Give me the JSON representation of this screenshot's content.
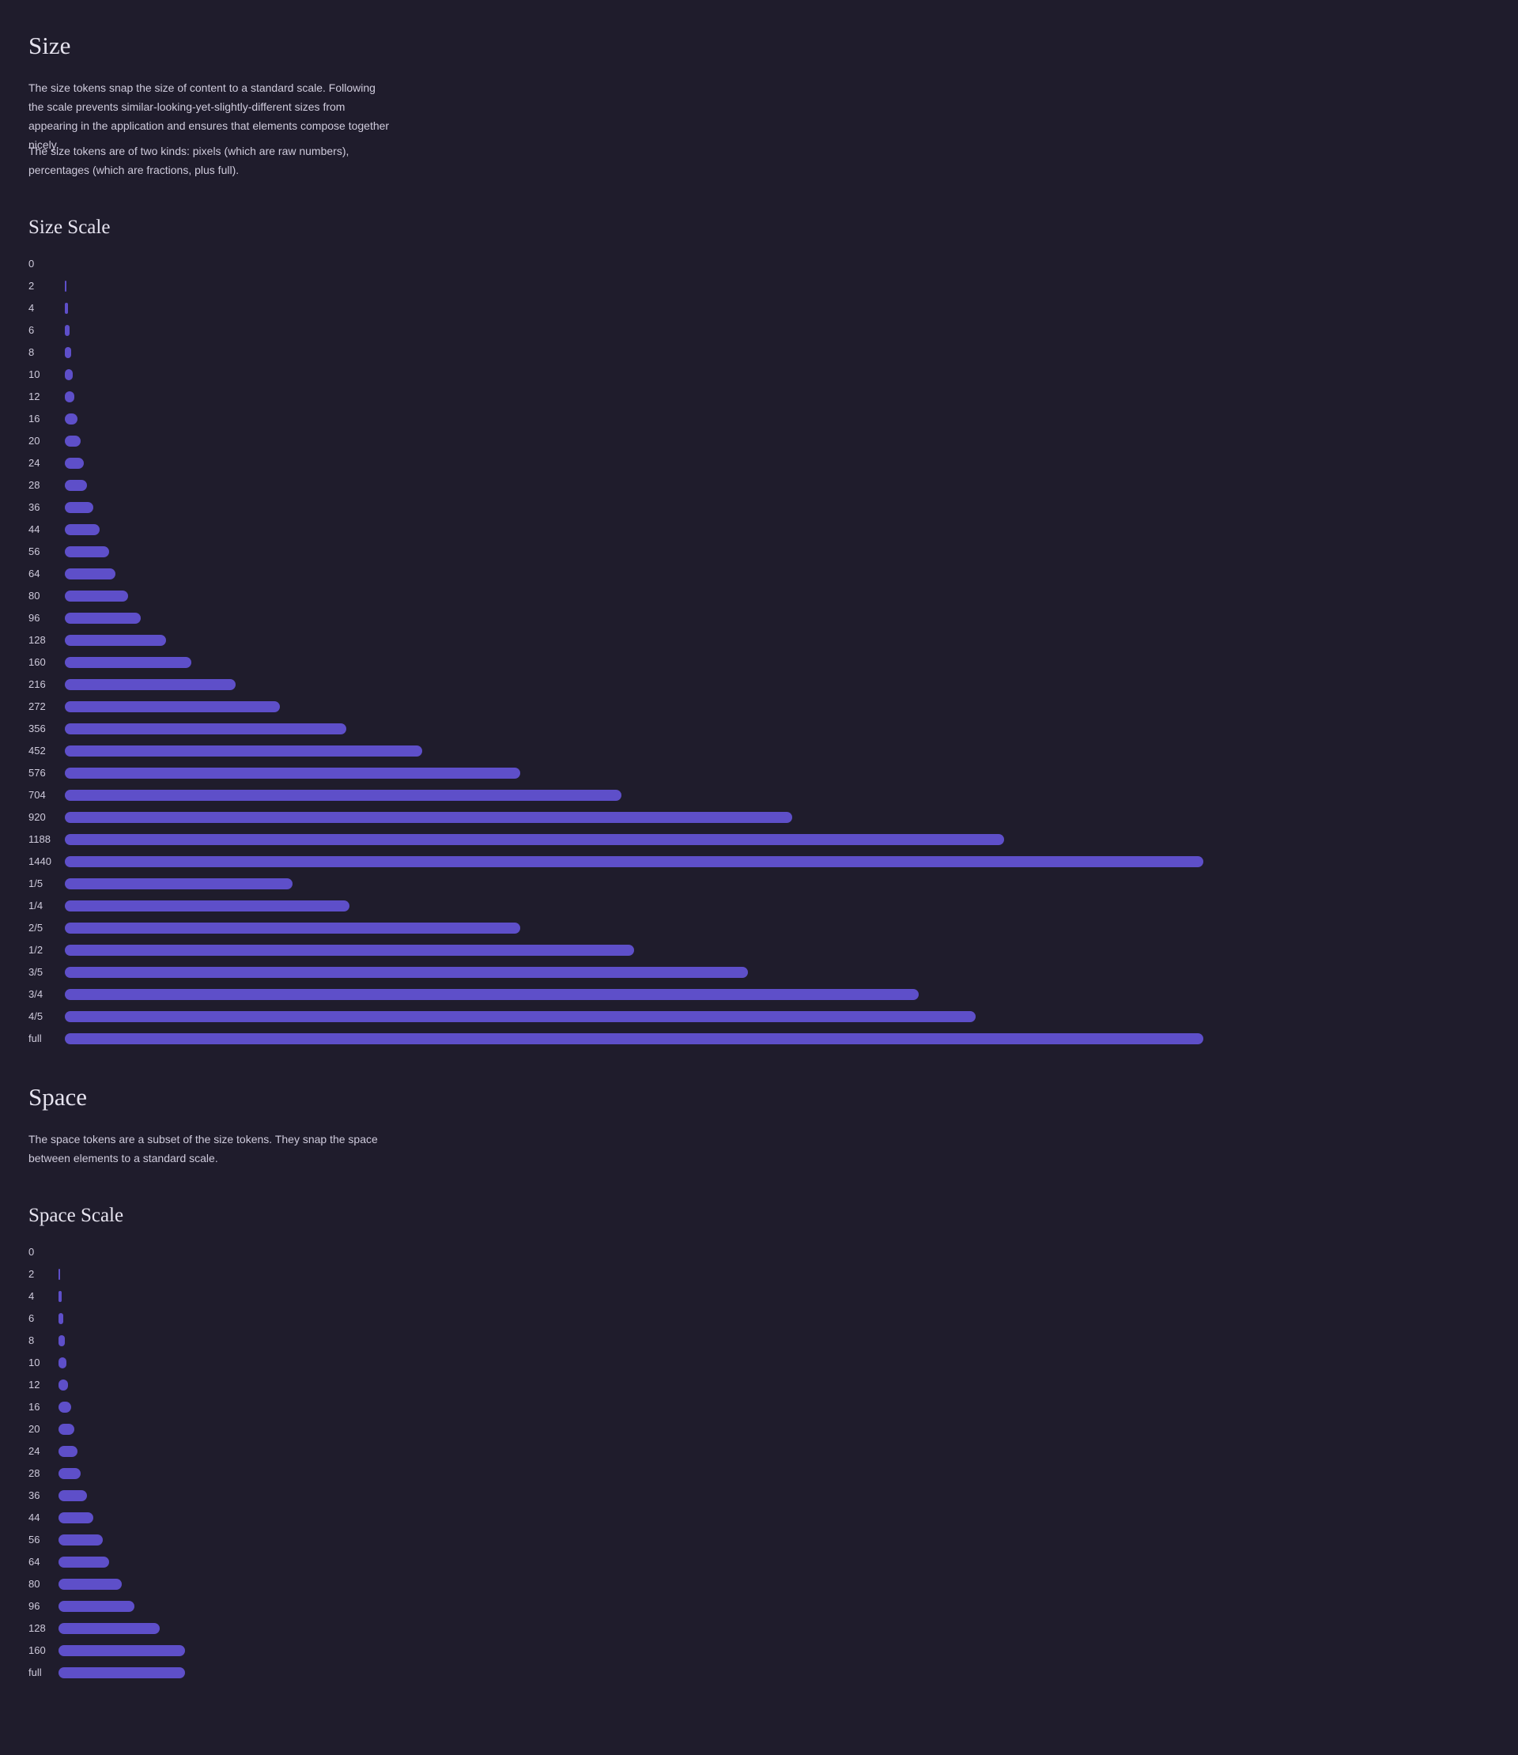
{
  "size": {
    "title": "Size",
    "paragraphs": [
      "The size tokens snap the size of content to a standard scale. Following the scale prevents similar-looking-yet-slightly-different sizes from appearing in the application and ensures that elements compose together nicely.",
      "The size tokens are of two kinds: pixels (which are raw numbers), percentages (which are fractions, plus full)."
    ],
    "scale_title": "Size Scale",
    "tokens": [
      {
        "label": "0",
        "value": 0
      },
      {
        "label": "2",
        "value": 2
      },
      {
        "label": "4",
        "value": 4
      },
      {
        "label": "6",
        "value": 6
      },
      {
        "label": "8",
        "value": 8
      },
      {
        "label": "10",
        "value": 10
      },
      {
        "label": "12",
        "value": 12
      },
      {
        "label": "16",
        "value": 16
      },
      {
        "label": "20",
        "value": 20
      },
      {
        "label": "24",
        "value": 24
      },
      {
        "label": "28",
        "value": 28
      },
      {
        "label": "36",
        "value": 36
      },
      {
        "label": "44",
        "value": 44
      },
      {
        "label": "56",
        "value": 56
      },
      {
        "label": "64",
        "value": 64
      },
      {
        "label": "80",
        "value": 80
      },
      {
        "label": "96",
        "value": 96
      },
      {
        "label": "128",
        "value": 128
      },
      {
        "label": "160",
        "value": 160
      },
      {
        "label": "216",
        "value": 216
      },
      {
        "label": "272",
        "value": 272
      },
      {
        "label": "356",
        "value": 356
      },
      {
        "label": "452",
        "value": 452
      },
      {
        "label": "576",
        "value": 576
      },
      {
        "label": "704",
        "value": 704
      },
      {
        "label": "920",
        "value": 920
      },
      {
        "label": "1188",
        "value": 1188
      },
      {
        "label": "1440",
        "value": 1440
      },
      {
        "label": "1/5",
        "value": 0.2
      },
      {
        "label": "1/4",
        "value": 0.25
      },
      {
        "label": "2/5",
        "value": 0.4
      },
      {
        "label": "1/2",
        "value": 0.5
      },
      {
        "label": "3/5",
        "value": 0.6
      },
      {
        "label": "3/4",
        "value": 0.75
      },
      {
        "label": "4/5",
        "value": 0.8
      },
      {
        "label": "full",
        "value": 1
      }
    ]
  },
  "space": {
    "title": "Space",
    "paragraphs": [
      "The space tokens are a subset of the size tokens. They snap the space between elements to a standard scale."
    ],
    "scale_title": "Space Scale",
    "tokens": [
      {
        "label": "0",
        "value": 0
      },
      {
        "label": "2",
        "value": 2
      },
      {
        "label": "4",
        "value": 4
      },
      {
        "label": "6",
        "value": 6
      },
      {
        "label": "8",
        "value": 8
      },
      {
        "label": "10",
        "value": 10
      },
      {
        "label": "12",
        "value": 12
      },
      {
        "label": "16",
        "value": 16
      },
      {
        "label": "20",
        "value": 20
      },
      {
        "label": "24",
        "value": 24
      },
      {
        "label": "28",
        "value": 28
      },
      {
        "label": "36",
        "value": 36
      },
      {
        "label": "44",
        "value": 44
      },
      {
        "label": "56",
        "value": 56
      },
      {
        "label": "64",
        "value": 64
      },
      {
        "label": "80",
        "value": 80
      },
      {
        "label": "96",
        "value": 96
      },
      {
        "label": "128",
        "value": 128
      },
      {
        "label": "160",
        "value": 160
      },
      {
        "label": "full",
        "value": 160
      }
    ]
  },
  "colors": {
    "background": "#1f1c2c",
    "bar": "#5e4fc9",
    "text": "#cfcbdc",
    "heading": "#e6e3ef"
  }
}
